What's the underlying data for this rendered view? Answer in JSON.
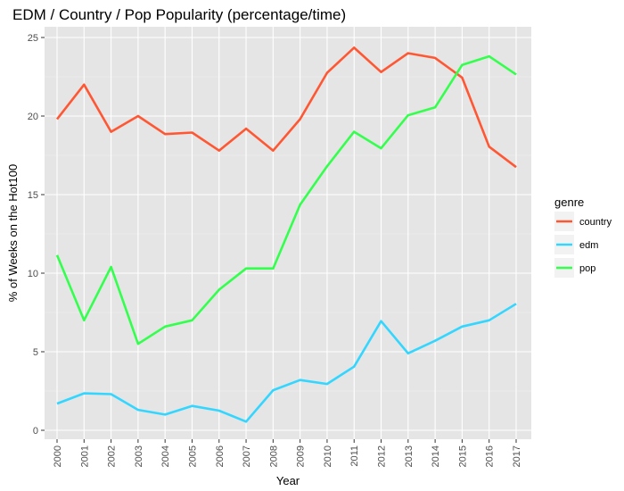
{
  "chart_data": {
    "type": "line",
    "title": "EDM / Country / Pop Popularity   (percentage/time)",
    "xlabel": "Year",
    "ylabel": "%  of Weeks on the Hot100",
    "x": [
      "2000",
      "2001",
      "2002",
      "2003",
      "2004",
      "2005",
      "2006",
      "2007",
      "2008",
      "2009",
      "2010",
      "2011",
      "2012",
      "2013",
      "2014",
      "2015",
      "2016",
      "2017"
    ],
    "ylim": [
      0,
      25
    ],
    "yticks": [
      "0",
      "5",
      "10",
      "15",
      "20",
      "25"
    ],
    "grid": true,
    "legend": {
      "title": "genre",
      "position": "right"
    },
    "series": [
      {
        "name": "country",
        "color": "#ff5733",
        "values": [
          19.8,
          22.0,
          19.0,
          20.0,
          18.85,
          18.95,
          17.8,
          19.2,
          17.8,
          19.8,
          22.75,
          24.35,
          22.8,
          24.0,
          23.7,
          22.45,
          18.05,
          16.75
        ]
      },
      {
        "name": "edm",
        "color": "#33d6ff",
        "values": [
          1.7,
          2.35,
          2.3,
          1.3,
          1.0,
          1.55,
          1.25,
          0.55,
          2.55,
          3.2,
          2.95,
          4.05,
          6.95,
          4.9,
          5.7,
          6.6,
          7.0,
          8.05
        ]
      },
      {
        "name": "pop",
        "color": "#33ff4d",
        "values": [
          11.15,
          7.0,
          10.4,
          5.5,
          6.6,
          7.0,
          8.95,
          10.3,
          10.3,
          14.35,
          16.8,
          19.0,
          17.95,
          20.05,
          20.55,
          23.25,
          23.8,
          22.65
        ]
      }
    ]
  }
}
